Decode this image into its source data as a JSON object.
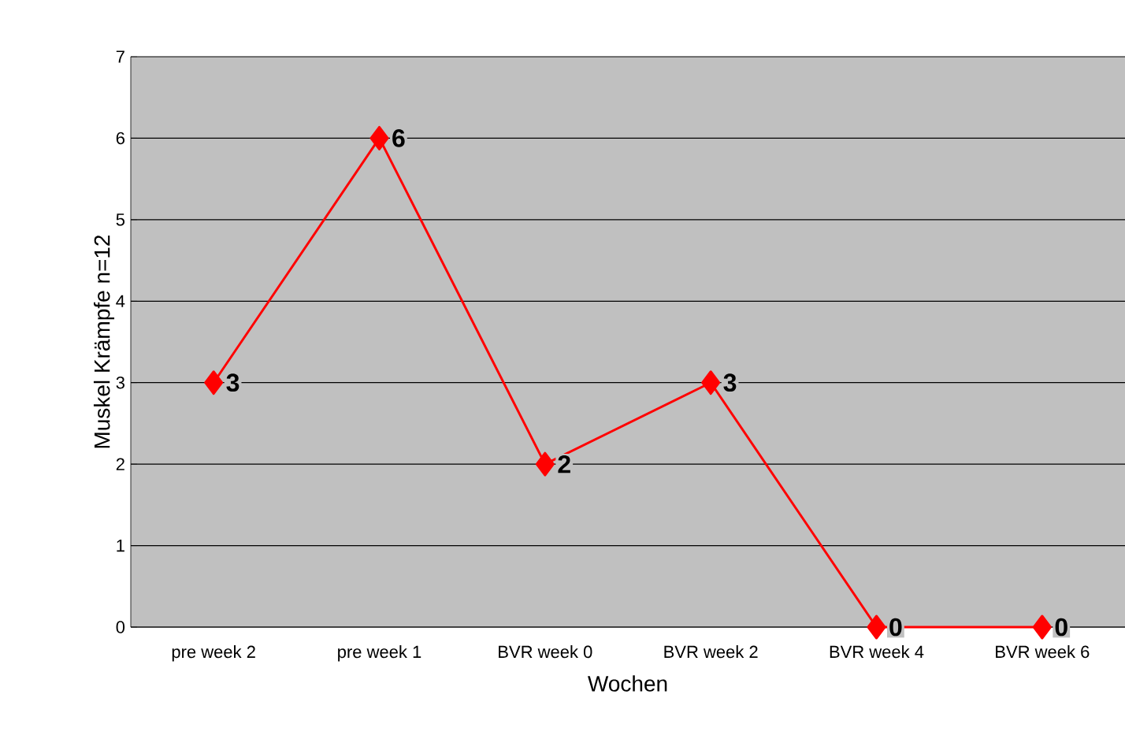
{
  "chart_data": {
    "type": "line",
    "xlabel": "Wochen",
    "ylabel": "Muskel Krämpfe n=12",
    "categories": [
      "pre week 2",
      "pre week 1",
      "BVR week 0",
      "BVR week 2",
      "BVR week 4",
      "BVR week 6"
    ],
    "series": [
      {
        "color": "#ff0000",
        "values": [
          3,
          6,
          2,
          3,
          0,
          0
        ]
      }
    ],
    "ylim": [
      0,
      7
    ],
    "yticks": [
      0,
      1,
      2,
      3,
      4,
      5,
      6,
      7
    ],
    "grid": "y",
    "marker": "diamond",
    "line_style": "solid",
    "data_labels": true
  }
}
